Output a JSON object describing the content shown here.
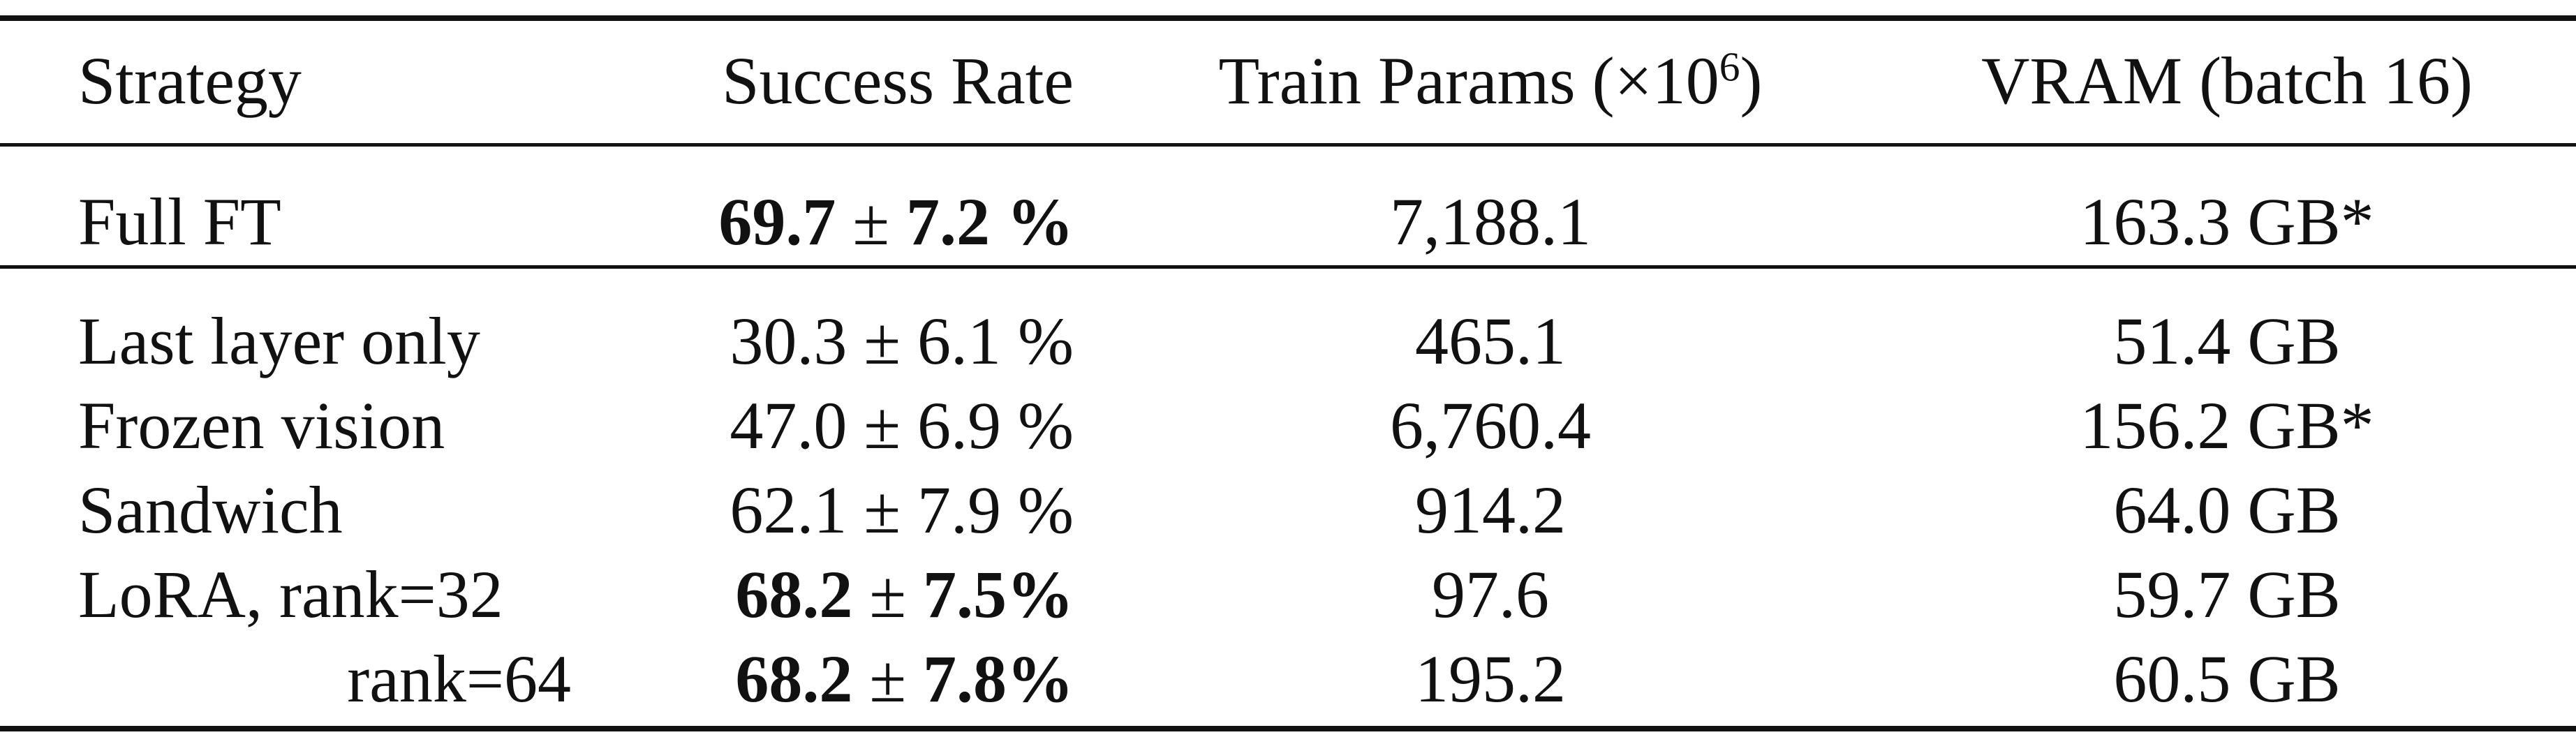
{
  "table": {
    "headers": {
      "strategy": "Strategy",
      "success_rate": "Success Rate",
      "train_params_prefix": "Train Params (×10",
      "train_params_exp": "6",
      "train_params_suffix": ")",
      "vram": "VRAM (batch 16)"
    },
    "rows": [
      {
        "strategy": "Full FT",
        "success_mean": "69.7",
        "pm": "±",
        "success_std": "7.2 %",
        "train_params": "7,188.1",
        "vram": "163.3 GB*"
      },
      {
        "strategy": "Last layer only",
        "success_mean": "30.3",
        "pm": "±",
        "success_std": "6.1 %",
        "train_params": "465.1",
        "vram": "51.4 GB"
      },
      {
        "strategy": "Frozen vision",
        "success_mean": "47.0",
        "pm": "±",
        "success_std": "6.9 %",
        "train_params": "6,760.4",
        "vram": "156.2 GB*"
      },
      {
        "strategy": "Sandwich",
        "success_mean": "62.1",
        "pm": "±",
        "success_std": "7.9 %",
        "train_params": "914.2",
        "vram": "64.0 GB"
      },
      {
        "strategy": "LoRA, rank=32",
        "success_mean": "68.2",
        "pm": "±",
        "success_std": "7.5%",
        "train_params": "97.6",
        "vram": "59.7 GB"
      },
      {
        "strategy": "rank=64",
        "success_mean": "68.2",
        "pm": "±",
        "success_std": "7.8%",
        "train_params": "195.2",
        "vram": "60.5 GB"
      }
    ]
  }
}
